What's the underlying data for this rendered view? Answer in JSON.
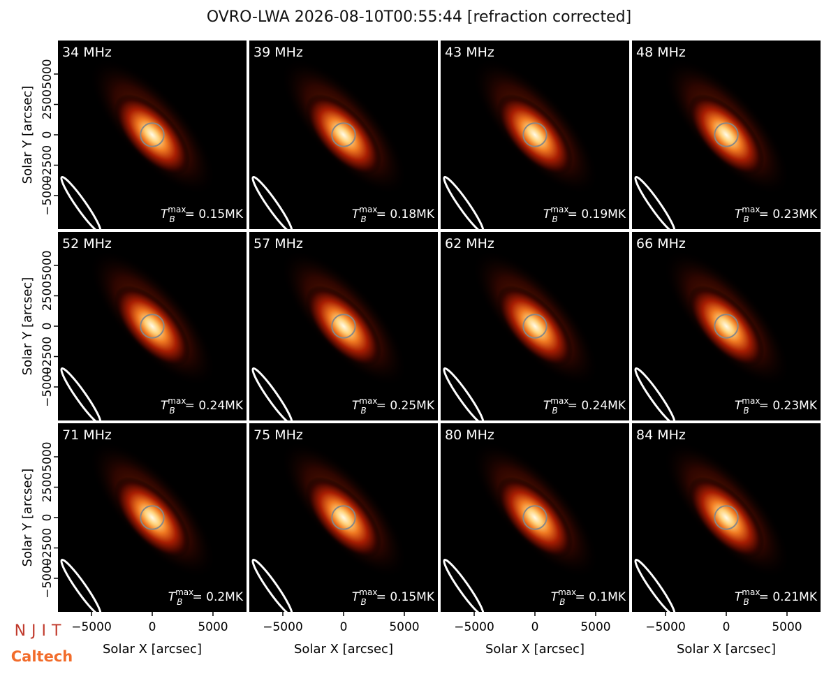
{
  "figure_title": "OVRO-LWA 2026-08-10T00:55:44 [refraction corrected]",
  "logos": [
    "NJIT",
    "Caltech"
  ],
  "tb_symbol": {
    "base": "T",
    "sub": "B",
    "sup": "max"
  },
  "chart_data": [
    {
      "type": "image",
      "title": "34 MHz",
      "annotation": "= 0.15MK",
      "xlim": [
        -7760,
        7760
      ],
      "ylim": [
        -7760,
        7760
      ],
      "yticks": [
        {
          "value": -5000,
          "label": "−5000"
        },
        {
          "value": -2500,
          "label": "−2500"
        },
        0,
        2500,
        5000
      ],
      "ylabel": "Solar Y [arcsec]"
    },
    {
      "type": "image",
      "title": "39 MHz",
      "annotation": "= 0.18MK",
      "xlim": [
        -7760,
        7760
      ],
      "ylim": [
        -7760,
        7760
      ]
    },
    {
      "type": "image",
      "title": "43 MHz",
      "annotation": "= 0.19MK",
      "xlim": [
        -7760,
        7760
      ],
      "ylim": [
        -7760,
        7760
      ]
    },
    {
      "type": "image",
      "title": "48 MHz",
      "annotation": "= 0.23MK",
      "xlim": [
        -7760,
        7760
      ],
      "ylim": [
        -7760,
        7760
      ]
    },
    {
      "type": "image",
      "title": "52 MHz",
      "annotation": "= 0.24MK",
      "xlim": [
        -7760,
        7760
      ],
      "ylim": [
        -7760,
        7760
      ],
      "yticks": [
        {
          "value": -5000,
          "label": "−5000"
        },
        {
          "value": -2500,
          "label": "−2500"
        },
        0,
        2500,
        5000
      ],
      "ylabel": "Solar Y [arcsec]"
    },
    {
      "type": "image",
      "title": "57 MHz",
      "annotation": "= 0.25MK",
      "xlim": [
        -7760,
        7760
      ],
      "ylim": [
        -7760,
        7760
      ]
    },
    {
      "type": "image",
      "title": "62 MHz",
      "annotation": "= 0.24MK",
      "xlim": [
        -7760,
        7760
      ],
      "ylim": [
        -7760,
        7760
      ]
    },
    {
      "type": "image",
      "title": "66 MHz",
      "annotation": "= 0.23MK",
      "xlim": [
        -7760,
        7760
      ],
      "ylim": [
        -7760,
        7760
      ]
    },
    {
      "type": "image",
      "title": "71 MHz",
      "annotation": "= 0.2MK",
      "xlim": [
        -7760,
        7760
      ],
      "ylim": [
        -7760,
        7760
      ],
      "yticks": [
        {
          "value": -5000,
          "label": "−5000"
        },
        {
          "value": -2500,
          "label": "−2500"
        },
        0,
        2500,
        5000
      ],
      "ylabel": "Solar Y [arcsec]",
      "xticks": [
        {
          "value": -5000,
          "label": "−5000"
        },
        0,
        5000
      ],
      "xlabel": "Solar X [arcsec]"
    },
    {
      "type": "image",
      "title": "75 MHz",
      "annotation": "= 0.15MK",
      "xlim": [
        -7760,
        7760
      ],
      "ylim": [
        -7760,
        7760
      ],
      "xticks": [
        {
          "value": -5000,
          "label": "−5000"
        },
        0,
        5000
      ],
      "xlabel": "Solar X [arcsec]"
    },
    {
      "type": "image",
      "title": "80 MHz",
      "annotation": "= 0.1MK",
      "xlim": [
        -7760,
        7760
      ],
      "ylim": [
        -7760,
        7760
      ],
      "xticks": [
        {
          "value": -5000,
          "label": "−5000"
        },
        0,
        5000
      ],
      "xlabel": "Solar X [arcsec]"
    },
    {
      "type": "image",
      "title": "84 MHz",
      "annotation": "= 0.21MK",
      "xlim": [
        -7760,
        7760
      ],
      "ylim": [
        -7760,
        7760
      ],
      "xticks": [
        {
          "value": -5000,
          "label": "−5000"
        },
        0,
        5000
      ],
      "xlabel": "Solar X [arcsec]"
    }
  ]
}
